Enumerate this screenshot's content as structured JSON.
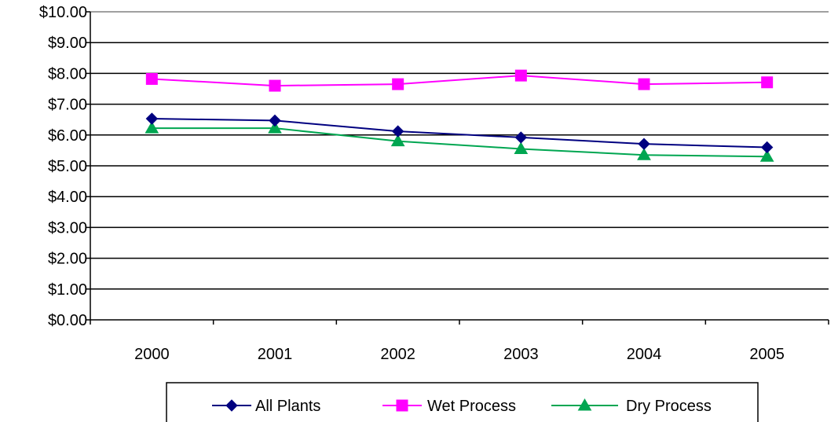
{
  "chart_data": {
    "type": "line",
    "title": "",
    "xlabel": "",
    "ylabel": "",
    "categories": [
      "2000",
      "2001",
      "2002",
      "2003",
      "2004",
      "2005"
    ],
    "ylim": [
      0,
      10
    ],
    "y_ticks": [
      "$0.00",
      "$1.00",
      "$2.00",
      "$3.00",
      "$4.00",
      "$5.00",
      "$6.00",
      "$7.00",
      "$8.00",
      "$9.00",
      "$10.00"
    ],
    "grid": true,
    "legend_position": "bottom",
    "series": [
      {
        "name": "All Plants",
        "color": "#000080",
        "marker": "diamond",
        "values": [
          6.53,
          6.47,
          6.12,
          5.92,
          5.71,
          5.6
        ]
      },
      {
        "name": "Wet Process",
        "color": "#FF00FF",
        "marker": "square",
        "values": [
          7.82,
          7.6,
          7.65,
          7.93,
          7.65,
          7.71
        ]
      },
      {
        "name": "Dry Process",
        "color": "#00A651",
        "marker": "triangle",
        "values": [
          6.22,
          6.22,
          5.8,
          5.55,
          5.35,
          5.3
        ]
      }
    ]
  }
}
